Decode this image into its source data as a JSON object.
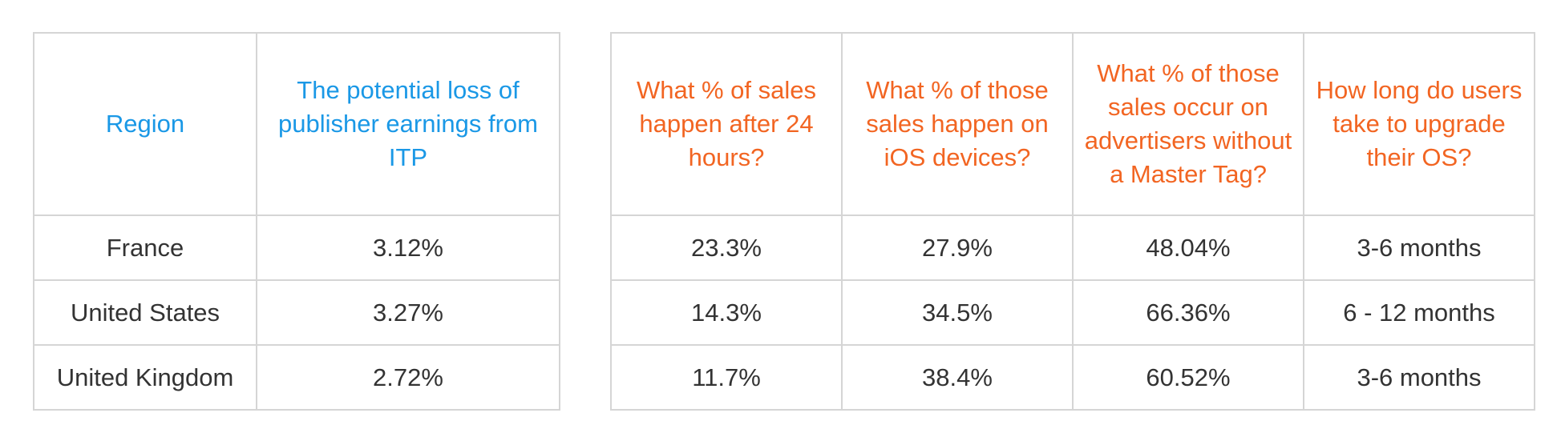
{
  "colors": {
    "left_header": "#1a98e6",
    "right_header": "#f26522"
  },
  "left_table": {
    "headers": [
      "Region",
      "The potential loss of publisher earnings from ITP"
    ],
    "rows": [
      [
        "France",
        "3.12%"
      ],
      [
        "United States",
        "3.27%"
      ],
      [
        "United Kingdom",
        "2.72%"
      ]
    ]
  },
  "right_table": {
    "headers": [
      "What % of sales happen after 24 hours?",
      "What % of those sales happen on iOS devices?",
      "What % of those sales occur on advertisers without a Master Tag?",
      "How long do users take to upgrade their OS?"
    ],
    "rows": [
      [
        "23.3%",
        "27.9%",
        "48.04%",
        "3-6 months"
      ],
      [
        "14.3%",
        "34.5%",
        "66.36%",
        "6 - 12 months"
      ],
      [
        "11.7%",
        "38.4%",
        "60.52%",
        "3-6 months"
      ]
    ]
  }
}
